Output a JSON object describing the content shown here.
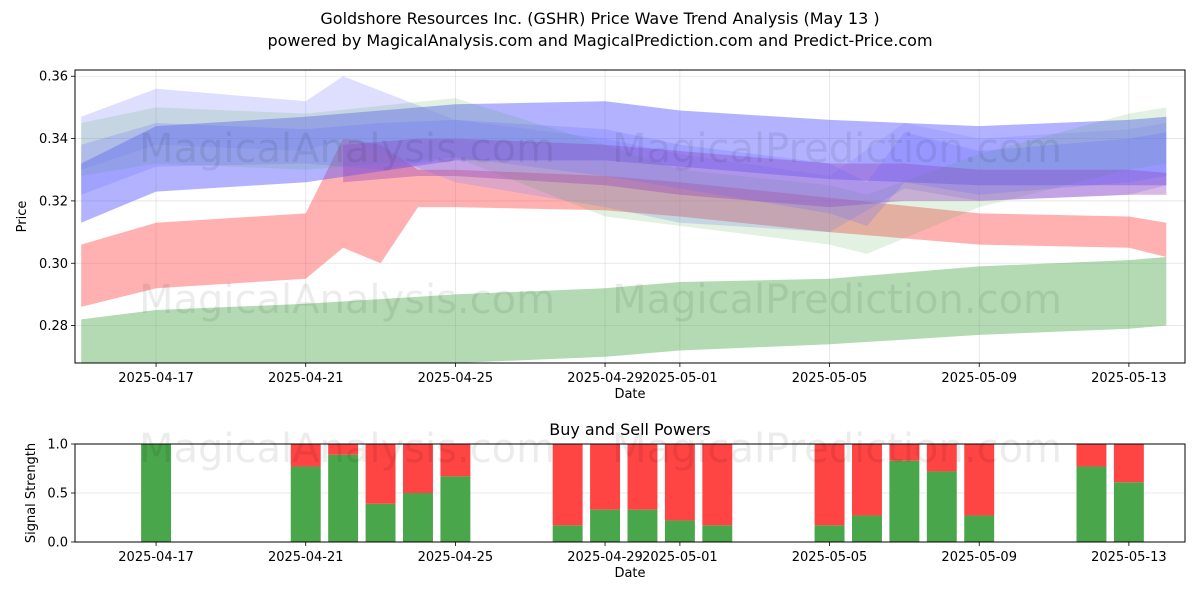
{
  "title_line1": "Goldshore Resources Inc. (GSHR) Price Wave Trend Analysis (May 13 )",
  "title_line2": "powered by MagicalAnalysis.com and MagicalPrediction.com and Predict-Price.com",
  "watermarks": [
    "MagicalAnalysis.com",
    "MagicalPrediction.com"
  ],
  "colors": {
    "red": "#ff4444",
    "green": "#4aa64a",
    "blue": "#5555ff",
    "purple": "#9944bb"
  },
  "chart_data": [
    {
      "type": "area",
      "title": "",
      "xlabel": "Date",
      "ylabel": "Price",
      "ylim": [
        0.268,
        0.362
      ],
      "xlim": [
        "2025-04-14T20:00",
        "2025-05-14T12:00"
      ],
      "yticks": [
        0.28,
        0.3,
        0.32,
        0.34,
        0.36
      ],
      "yticklabels": [
        "0.28",
        "0.30",
        "0.32",
        "0.34",
        "0.36"
      ],
      "xticks": [
        "2025-04-17",
        "2025-04-21",
        "2025-04-25",
        "2025-04-29",
        "2025-05-01",
        "2025-05-05",
        "2025-05-09",
        "2025-05-13"
      ],
      "grid": true,
      "bands": [
        {
          "name": "",
          "color": "#4aa64a",
          "opacity": 0.42,
          "x": [
            "2025-04-15",
            "2025-04-17",
            "2025-04-21",
            "2025-04-25",
            "2025-04-29",
            "2025-05-01",
            "2025-05-05",
            "2025-05-09",
            "2025-05-13",
            "2025-05-14"
          ],
          "upper": [
            0.282,
            0.285,
            0.287,
            0.29,
            0.292,
            0.294,
            0.295,
            0.299,
            0.301,
            0.302
          ],
          "lower": [
            0.262,
            0.264,
            0.266,
            0.268,
            0.27,
            0.272,
            0.274,
            0.277,
            0.279,
            0.28
          ]
        },
        {
          "name": "",
          "color": "#ff4444",
          "opacity": 0.42,
          "x": [
            "2025-04-15",
            "2025-04-17",
            "2025-04-21",
            "2025-04-22",
            "2025-04-23",
            "2025-04-24",
            "2025-04-25",
            "2025-04-29",
            "2025-05-01",
            "2025-05-05",
            "2025-05-09",
            "2025-05-13",
            "2025-05-14"
          ],
          "upper": [
            0.306,
            0.313,
            0.316,
            0.34,
            0.338,
            0.33,
            0.33,
            0.328,
            0.326,
            0.321,
            0.316,
            0.315,
            0.313
          ],
          "lower": [
            0.286,
            0.292,
            0.295,
            0.305,
            0.3,
            0.318,
            0.318,
            0.317,
            0.315,
            0.31,
            0.306,
            0.305,
            0.302
          ]
        },
        {
          "name": "",
          "color": "#5555ff",
          "opacity": 0.45,
          "x": [
            "2025-04-15",
            "2025-04-17",
            "2025-04-21",
            "2025-04-25",
            "2025-04-29",
            "2025-05-01",
            "2025-05-05",
            "2025-05-09",
            "2025-05-13",
            "2025-05-14"
          ],
          "upper": [
            0.332,
            0.344,
            0.347,
            0.351,
            0.352,
            0.349,
            0.346,
            0.344,
            0.346,
            0.347
          ],
          "lower": [
            0.313,
            0.323,
            0.326,
            0.333,
            0.333,
            0.331,
            0.327,
            0.325,
            0.325,
            0.325
          ]
        },
        {
          "name": "",
          "color": "#8888ff",
          "opacity": 0.28,
          "x": [
            "2025-04-15",
            "2025-04-17",
            "2025-04-21",
            "2025-04-22",
            "2025-04-25",
            "2025-04-29",
            "2025-05-01",
            "2025-05-05",
            "2025-05-07",
            "2025-05-09",
            "2025-05-13",
            "2025-05-14"
          ],
          "upper": [
            0.347,
            0.356,
            0.352,
            0.36,
            0.346,
            0.34,
            0.335,
            0.328,
            0.345,
            0.34,
            0.343,
            0.345
          ],
          "lower": [
            0.33,
            0.338,
            0.336,
            0.34,
            0.326,
            0.318,
            0.313,
            0.31,
            0.324,
            0.32,
            0.322,
            0.325
          ]
        },
        {
          "name": "",
          "color": "#4aa64a",
          "opacity": 0.16,
          "x": [
            "2025-04-15",
            "2025-04-17",
            "2025-04-21",
            "2025-04-25",
            "2025-04-29",
            "2025-05-01",
            "2025-05-05",
            "2025-05-06",
            "2025-05-09",
            "2025-05-13",
            "2025-05-14"
          ],
          "upper": [
            0.345,
            0.35,
            0.348,
            0.353,
            0.338,
            0.33,
            0.325,
            0.322,
            0.335,
            0.348,
            0.35
          ],
          "lower": [
            0.328,
            0.332,
            0.33,
            0.334,
            0.315,
            0.312,
            0.306,
            0.303,
            0.318,
            0.33,
            0.332
          ]
        },
        {
          "name": "",
          "color": "#9944bb",
          "opacity": 0.38,
          "x": [
            "2025-04-22",
            "2025-04-24",
            "2025-04-25",
            "2025-04-29",
            "2025-05-01",
            "2025-05-05",
            "2025-05-07",
            "2025-05-09",
            "2025-05-13",
            "2025-05-14"
          ],
          "upper": [
            0.338,
            0.34,
            0.34,
            0.338,
            0.336,
            0.332,
            0.332,
            0.33,
            0.33,
            0.329
          ],
          "lower": [
            0.326,
            0.328,
            0.328,
            0.325,
            0.322,
            0.318,
            0.32,
            0.32,
            0.322,
            0.322
          ]
        },
        {
          "name": "",
          "color": "#6666ff",
          "opacity": 0.22,
          "x": [
            "2025-04-15",
            "2025-04-17",
            "2025-04-21",
            "2025-04-23",
            "2025-04-25",
            "2025-04-29",
            "2025-05-01",
            "2025-05-05",
            "2025-05-06",
            "2025-05-07",
            "2025-05-09",
            "2025-05-13",
            "2025-05-14"
          ],
          "upper": [
            0.338,
            0.345,
            0.343,
            0.345,
            0.346,
            0.343,
            0.338,
            0.332,
            0.326,
            0.342,
            0.336,
            0.34,
            0.342
          ],
          "lower": [
            0.322,
            0.331,
            0.332,
            0.33,
            0.334,
            0.328,
            0.324,
            0.316,
            0.312,
            0.326,
            0.322,
            0.326,
            0.328
          ]
        }
      ]
    },
    {
      "type": "bar",
      "title": "Buy and Sell Powers",
      "xlabel": "Date",
      "ylabel": "Signal Strength",
      "ylim": [
        0,
        1.0
      ],
      "xlim": [
        "2025-04-14T20:00",
        "2025-05-14T12:00"
      ],
      "yticks": [
        0,
        0.5,
        1.0
      ],
      "yticklabels": [
        "0.0",
        "0.5",
        "1.0"
      ],
      "xticks": [
        "2025-04-17",
        "2025-04-21",
        "2025-04-25",
        "2025-04-29",
        "2025-05-01",
        "2025-05-05",
        "2025-05-09",
        "2025-05-13"
      ],
      "grid": true,
      "categories": [
        "2025-04-17",
        "2025-04-21",
        "2025-04-22",
        "2025-04-23",
        "2025-04-24",
        "2025-04-25",
        "2025-04-28",
        "2025-04-29",
        "2025-04-30",
        "2025-05-01",
        "2025-05-02",
        "2025-05-05",
        "2025-05-06",
        "2025-05-07",
        "2025-05-08",
        "2025-05-09",
        "2025-05-12",
        "2025-05-13"
      ],
      "series": [
        {
          "name": "",
          "color": "#4aa64a",
          "values": [
            1.0,
            0.77,
            0.89,
            0.39,
            0.5,
            0.67,
            0.17,
            0.33,
            0.33,
            0.22,
            0.17,
            0.17,
            0.27,
            0.83,
            0.72,
            0.27,
            0.77,
            0.61
          ]
        },
        {
          "name": "",
          "color": "#ff4444",
          "values": [
            0.0,
            0.23,
            0.11,
            0.61,
            0.5,
            0.33,
            0.83,
            0.67,
            0.67,
            0.78,
            0.83,
            0.83,
            0.73,
            0.17,
            0.28,
            0.73,
            0.23,
            0.39
          ]
        }
      ]
    }
  ]
}
